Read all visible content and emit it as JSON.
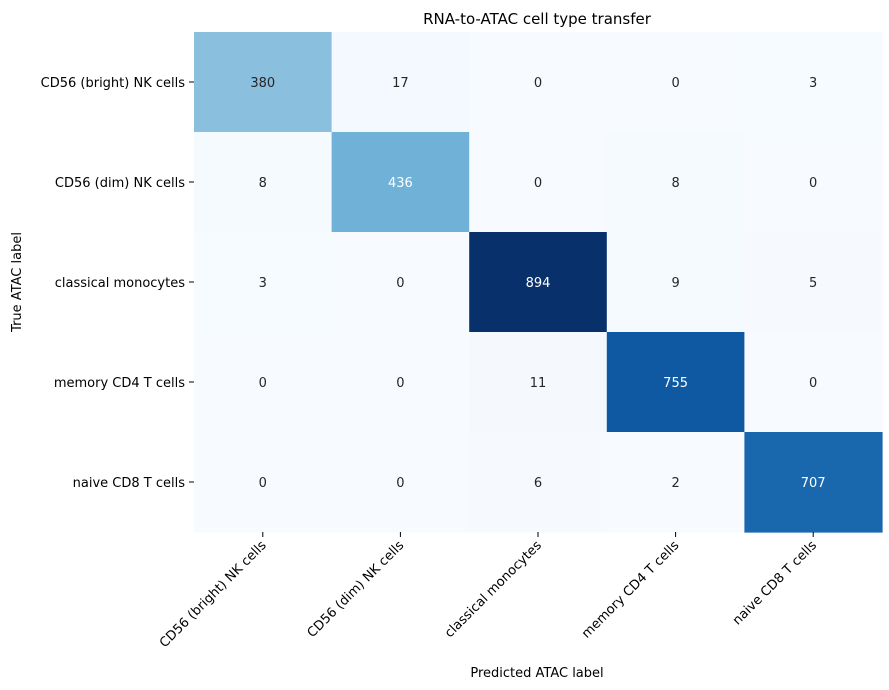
{
  "chart_data": {
    "type": "heatmap",
    "title": "RNA-to-ATAC cell type transfer",
    "xlabel": "Predicted ATAC label",
    "ylabel": "True ATAC label",
    "x_categories": [
      "CD56 (bright) NK cells",
      "CD56 (dim) NK cells",
      "classical monocytes",
      "memory CD4 T cells",
      "naive CD8 T cells"
    ],
    "y_categories": [
      "CD56 (bright) NK cells",
      "CD56 (dim) NK cells",
      "classical monocytes",
      "memory CD4 T cells",
      "naive CD8 T cells"
    ],
    "values": [
      [
        380,
        17,
        0,
        0,
        3
      ],
      [
        8,
        436,
        0,
        8,
        0
      ],
      [
        3,
        0,
        894,
        9,
        5
      ],
      [
        0,
        0,
        11,
        755,
        0
      ],
      [
        0,
        0,
        6,
        2,
        707
      ]
    ],
    "colormap": "Blues",
    "value_range": [
      0,
      894
    ],
    "colorbar": false,
    "grid": false
  }
}
